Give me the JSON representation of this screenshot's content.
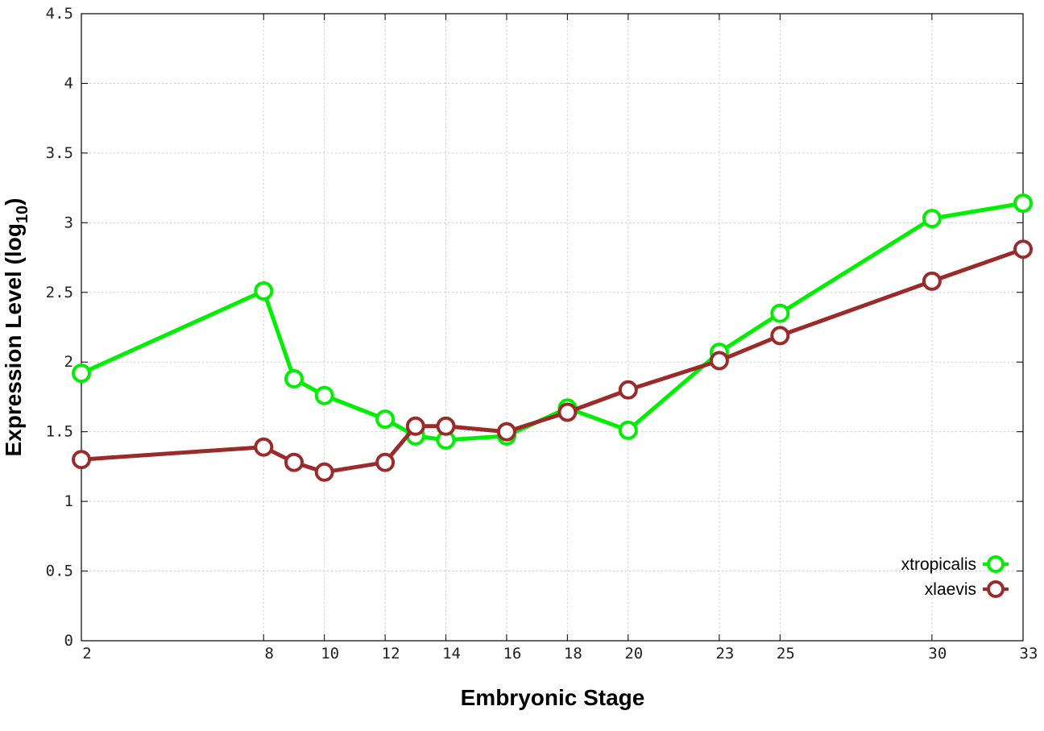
{
  "chart_data": {
    "type": "line",
    "title": "",
    "xlabel": "Embryonic Stage",
    "ylabel_main": "Expression Level (log",
    "ylabel_sub": "10",
    "ylabel_close": ")",
    "x": [
      2,
      8,
      9,
      10,
      12,
      13,
      14,
      16,
      18,
      20,
      23,
      25,
      30,
      33
    ],
    "x_ticks": [
      2,
      8,
      10,
      12,
      14,
      16,
      18,
      20,
      23,
      25,
      30,
      33
    ],
    "y_ticks": [
      "0",
      "0.5",
      "1",
      "1.5",
      "2",
      "2.5",
      "3",
      "3.5",
      "4",
      "4.5"
    ],
    "xlim": [
      2,
      33
    ],
    "ylim": [
      0,
      4.5
    ],
    "grid": true,
    "legend_position": "bottom-right",
    "series": [
      {
        "name": "xtropicalis",
        "color": "#00ee00",
        "values": [
          1.92,
          2.51,
          1.88,
          1.76,
          1.59,
          1.47,
          1.44,
          1.47,
          1.67,
          1.51,
          2.07,
          2.35,
          3.03,
          3.14
        ]
      },
      {
        "name": "xlaevis",
        "color": "#9b2a2a",
        "values": [
          1.3,
          1.39,
          1.28,
          1.21,
          1.28,
          1.54,
          1.54,
          1.5,
          1.64,
          1.8,
          2.01,
          2.19,
          2.58,
          2.81
        ]
      }
    ]
  }
}
